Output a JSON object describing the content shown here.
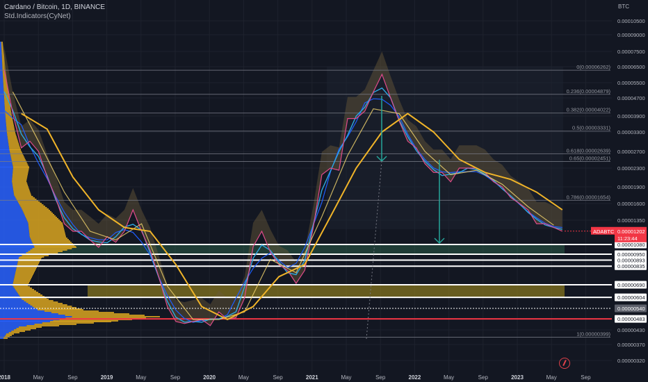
{
  "header": {
    "title": "Cardano / Bitcoin, 1D, BINANCE",
    "indicator": "Std.Indicators(CyNet)"
  },
  "chart_data": {
    "type": "line",
    "symbol": "ADABTC",
    "currency_label": "BTC",
    "y_scale": "log",
    "ylim": [
      2.9e-06,
      1.2e-05
    ],
    "y_ticks": [
      "0.00010500",
      "0.00009000",
      "0.00007500",
      "0.00006500",
      "0.00005500",
      "0.00004700",
      "0.00003900",
      "0.00003300",
      "0.00002700",
      "0.00002300",
      "0.00001900",
      "0.00001600",
      "0.00001350"
    ],
    "y_ticks_lower": [
      "0.00000430",
      "0.00000370",
      "0.00000320"
    ],
    "x_ticks": [
      "2018",
      "May",
      "Sep",
      "2019",
      "May",
      "Sep",
      "2020",
      "May",
      "Sep",
      "2021",
      "May",
      "Sep",
      "2022",
      "May",
      "Sep",
      "2023",
      "May",
      "Sep"
    ],
    "fib_levels": [
      {
        "label": "0(0.00006262)",
        "value": 6.262e-05
      },
      {
        "label": "0.236(0.00004879)",
        "value": 4.879e-05
      },
      {
        "label": "0.382(0.00004022)",
        "value": 4.022e-05
      },
      {
        "label": "0.5(0.00003331)",
        "value": 3.331e-05
      },
      {
        "label": "0.618(0.00002639)",
        "value": 2.639e-05
      },
      {
        "label": "0.65(0.00002451)",
        "value": 2.451e-05
      },
      {
        "label": "0.786(0.00001654)",
        "value": 1.654e-05
      },
      {
        "label": "1(0.00000399)",
        "value": 3.99e-06
      }
    ],
    "support_levels": [
      "0.00001080",
      "0.00000950",
      "0.00000893",
      "0.00000835",
      "0.00000690",
      "0.00000604",
      "0.00000540",
      "0.00000483"
    ],
    "last_price": {
      "label": "ADABTC",
      "value": "0.00001202",
      "countdown": "11:23:44",
      "color": "#f23645"
    },
    "price_series": [
      [
        "2018-01",
        6.3e-05
      ],
      [
        "2018-02",
        4e-05
      ],
      [
        "2018-03",
        2.8e-05
      ],
      [
        "2018-04",
        3e-05
      ],
      [
        "2018-05",
        2.7e-05
      ],
      [
        "2018-06",
        2.1e-05
      ],
      [
        "2018-07",
        1.7e-05
      ],
      [
        "2018-08",
        1.3e-05
      ],
      [
        "2018-09",
        1.2e-05
      ],
      [
        "2018-10",
        1.2e-05
      ],
      [
        "2018-11",
        1.12e-05
      ],
      [
        "2018-12",
        1.04e-05
      ],
      [
        "2019-01",
        1.15e-05
      ],
      [
        "2019-02",
        1.1e-05
      ],
      [
        "2019-03",
        1.2e-05
      ],
      [
        "2019-04",
        1.5e-05
      ],
      [
        "2019-05",
        1.2e-05
      ],
      [
        "2019-06",
        1e-05
      ],
      [
        "2019-07",
        7.5e-06
      ],
      [
        "2019-08",
        5.5e-06
      ],
      [
        "2019-09",
        4.7e-06
      ],
      [
        "2019-10",
        4.6e-06
      ],
      [
        "2019-11",
        4.7e-06
      ],
      [
        "2019-12",
        4.8e-06
      ],
      [
        "2020-01",
        4.5e-06
      ],
      [
        "2020-02",
        5.2e-06
      ],
      [
        "2020-03",
        4.8e-06
      ],
      [
        "2020-04",
        4.9e-06
      ],
      [
        "2020-05",
        6e-06
      ],
      [
        "2020-06",
        1.05e-05
      ],
      [
        "2020-07",
        1.2e-05
      ],
      [
        "2020-08",
        9.8e-06
      ],
      [
        "2020-09",
        8.5e-06
      ],
      [
        "2020-10",
        8e-06
      ],
      [
        "2020-11",
        7e-06
      ],
      [
        "2020-12",
        8e-06
      ],
      [
        "2021-01",
        1.25e-05
      ],
      [
        "2021-02",
        2.15e-05
      ],
      [
        "2021-03",
        2.3e-05
      ],
      [
        "2021-04",
        2.25e-05
      ],
      [
        "2021-05",
        3.8e-05
      ],
      [
        "2021-06",
        3.8e-05
      ],
      [
        "2021-07",
        4.1e-05
      ],
      [
        "2021-08",
        5e-05
      ],
      [
        "2021-09",
        6e-05
      ],
      [
        "2021-10",
        4.7e-05
      ],
      [
        "2021-11",
        3.7e-05
      ],
      [
        "2021-12",
        3e-05
      ],
      [
        "2022-01",
        2.8e-05
      ],
      [
        "2022-02",
        2.4e-05
      ],
      [
        "2022-03",
        2.2e-05
      ],
      [
        "2022-04",
        2.2e-05
      ],
      [
        "2022-05",
        2e-05
      ],
      [
        "2022-06",
        2.3e-05
      ],
      [
        "2022-07",
        2.3e-05
      ],
      [
        "2022-08",
        2.3e-05
      ],
      [
        "2022-09",
        2.2e-05
      ],
      [
        "2022-10",
        2e-05
      ],
      [
        "2022-11",
        1.9e-05
      ],
      [
        "2022-12",
        1.7e-05
      ],
      [
        "2023-01",
        1.6e-05
      ],
      [
        "2023-02",
        1.5e-05
      ],
      [
        "2023-03",
        1.3e-05
      ],
      [
        "2023-04",
        1.3e-05
      ],
      [
        "2023-05",
        1.25e-05
      ],
      [
        "2023-06",
        1.2e-05
      ]
    ],
    "ma_long": [
      [
        "2018-03",
        4e-05
      ],
      [
        "2018-06",
        3.4e-05
      ],
      [
        "2018-09",
        2.1e-05
      ],
      [
        "2018-12",
        1.5e-05
      ],
      [
        "2019-03",
        1.25e-05
      ],
      [
        "2019-06",
        1.2e-05
      ],
      [
        "2019-09",
        8.5e-06
      ],
      [
        "2019-12",
        5.5e-06
      ],
      [
        "2020-03",
        4.8e-06
      ],
      [
        "2020-06",
        5.5e-06
      ],
      [
        "2020-09",
        7.5e-06
      ],
      [
        "2020-12",
        8.5e-06
      ],
      [
        "2021-03",
        1.4e-05
      ],
      [
        "2021-06",
        2.3e-05
      ],
      [
        "2021-09",
        3.3e-05
      ],
      [
        "2021-12",
        4e-05
      ],
      [
        "2022-03",
        3.3e-05
      ],
      [
        "2022-06",
        2.5e-05
      ],
      [
        "2022-09",
        2.2e-05
      ],
      [
        "2022-12",
        2.05e-05
      ],
      [
        "2023-03",
        1.8e-05
      ],
      [
        "2023-06",
        1.5e-05
      ]
    ],
    "ma_mid": [
      [
        "2018-02",
        5e-05
      ],
      [
        "2018-05",
        3e-05
      ],
      [
        "2018-08",
        1.8e-05
      ],
      [
        "2018-11",
        1.2e-05
      ],
      [
        "2019-02",
        1.12e-05
      ],
      [
        "2019-05",
        1.3e-05
      ],
      [
        "2019-08",
        6.8e-06
      ],
      [
        "2019-11",
        4.8e-06
      ],
      [
        "2020-02",
        4.8e-06
      ],
      [
        "2020-05",
        5.2e-06
      ],
      [
        "2020-08",
        9e-06
      ],
      [
        "2020-11",
        7.8e-06
      ],
      [
        "2021-02",
        1.4e-05
      ],
      [
        "2021-05",
        2.6e-05
      ],
      [
        "2021-08",
        4.2e-05
      ],
      [
        "2021-11",
        4e-05
      ],
      [
        "2022-02",
        2.7e-05
      ],
      [
        "2022-05",
        2.15e-05
      ],
      [
        "2022-08",
        2.25e-05
      ],
      [
        "2022-11",
        1.95e-05
      ],
      [
        "2023-02",
        1.55e-05
      ],
      [
        "2023-05",
        1.28e-05
      ]
    ],
    "colors": {
      "background": "#131722",
      "price": "#e04b8a",
      "ma_fast": "#2ea7e0",
      "ma_slow": "#1e5eff",
      "ma_long": "#f0b429",
      "cloud": "#6b5a3a",
      "fib_line": "#787b86",
      "support_line": "#ffffff",
      "red_line": "#f23645",
      "green_zone": "#2e6b4f",
      "yellow_zone": "#8c7a1e",
      "arrow": "#26a69a",
      "vp_blue": "#2962ff",
      "vp_yellow": "#d9a520"
    }
  }
}
